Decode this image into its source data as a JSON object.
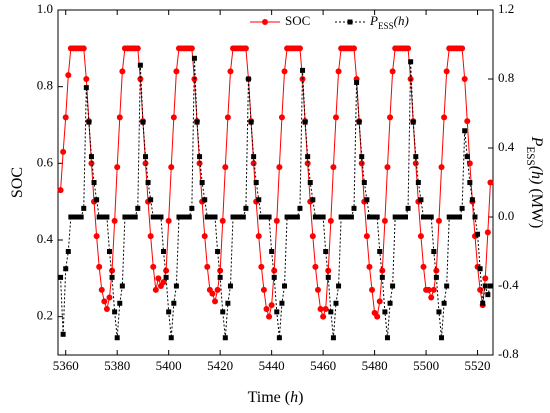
{
  "chart_data": {
    "type": "line",
    "xlabel": [
      {
        "text": "Time ("
      },
      {
        "text": "h",
        "italic": true
      },
      {
        "text": ")"
      }
    ],
    "ylabel": [
      {
        "text": "SOC"
      }
    ],
    "y2label": [
      {
        "text": "P",
        "italic": true
      },
      {
        "text": "ESS",
        "sub": true
      },
      {
        "text": "(h)",
        "italic": true
      },
      {
        "text": " (MW)"
      }
    ],
    "x": [
      5358,
      5359,
      5360,
      5361,
      5362,
      5363,
      5364,
      5365,
      5366,
      5367,
      5368,
      5369,
      5370,
      5371,
      5372,
      5373,
      5374,
      5375,
      5376,
      5377,
      5378,
      5379,
      5380,
      5381,
      5382,
      5383,
      5384,
      5385,
      5386,
      5387,
      5388,
      5389,
      5390,
      5391,
      5392,
      5393,
      5394,
      5395,
      5396,
      5397,
      5398,
      5399,
      5400,
      5401,
      5402,
      5403,
      5404,
      5405,
      5406,
      5407,
      5408,
      5409,
      5410,
      5411,
      5412,
      5413,
      5414,
      5415,
      5416,
      5417,
      5418,
      5419,
      5420,
      5421,
      5422,
      5423,
      5424,
      5425,
      5426,
      5427,
      5428,
      5429,
      5430,
      5431,
      5432,
      5433,
      5434,
      5435,
      5436,
      5437,
      5438,
      5439,
      5440,
      5441,
      5442,
      5443,
      5444,
      5445,
      5446,
      5447,
      5448,
      5449,
      5450,
      5451,
      5452,
      5453,
      5454,
      5455,
      5456,
      5457,
      5458,
      5459,
      5460,
      5461,
      5462,
      5463,
      5464,
      5465,
      5466,
      5467,
      5468,
      5469,
      5470,
      5471,
      5472,
      5473,
      5474,
      5475,
      5476,
      5477,
      5478,
      5479,
      5480,
      5481,
      5482,
      5483,
      5484,
      5485,
      5486,
      5487,
      5488,
      5489,
      5490,
      5491,
      5492,
      5493,
      5494,
      5495,
      5496,
      5497,
      5498,
      5499,
      5500,
      5501,
      5502,
      5503,
      5504,
      5505,
      5506,
      5507,
      5508,
      5509,
      5510,
      5511,
      5512,
      5513,
      5514,
      5515,
      5516,
      5517,
      5518,
      5519,
      5520,
      5521,
      5522,
      5523,
      5524,
      5525
    ],
    "series": [
      {
        "name": [
          {
            "text": "SOC"
          }
        ],
        "color": "#ff0000",
        "dash": false,
        "marker": "circle",
        "axis": "y",
        "values": [
          0.53,
          0.63,
          0.72,
          0.83,
          0.9,
          0.9,
          0.9,
          0.9,
          0.9,
          0.9,
          0.82,
          0.71,
          0.6,
          0.5,
          0.41,
          0.33,
          0.27,
          0.24,
          0.22,
          0.25,
          0.32,
          0.45,
          0.59,
          0.72,
          0.84,
          0.9,
          0.9,
          0.9,
          0.9,
          0.9,
          0.9,
          0.82,
          0.71,
          0.6,
          0.5,
          0.41,
          0.33,
          0.27,
          0.3,
          0.28,
          0.29,
          0.32,
          0.45,
          0.59,
          0.72,
          0.84,
          0.9,
          0.9,
          0.9,
          0.9,
          0.9,
          0.9,
          0.82,
          0.71,
          0.6,
          0.5,
          0.41,
          0.33,
          0.27,
          0.26,
          0.24,
          0.27,
          0.32,
          0.45,
          0.59,
          0.72,
          0.84,
          0.9,
          0.9,
          0.9,
          0.9,
          0.9,
          0.9,
          0.82,
          0.71,
          0.6,
          0.5,
          0.41,
          0.33,
          0.27,
          0.22,
          0.2,
          0.23,
          0.32,
          0.45,
          0.59,
          0.72,
          0.84,
          0.9,
          0.9,
          0.9,
          0.9,
          0.9,
          0.9,
          0.82,
          0.71,
          0.6,
          0.5,
          0.41,
          0.33,
          0.27,
          0.22,
          0.2,
          0.22,
          0.32,
          0.45,
          0.59,
          0.72,
          0.84,
          0.9,
          0.9,
          0.9,
          0.9,
          0.9,
          0.9,
          0.82,
          0.71,
          0.6,
          0.5,
          0.41,
          0.33,
          0.27,
          0.21,
          0.2,
          0.24,
          0.32,
          0.45,
          0.59,
          0.72,
          0.84,
          0.9,
          0.9,
          0.9,
          0.9,
          0.9,
          0.9,
          0.82,
          0.71,
          0.6,
          0.5,
          0.41,
          0.33,
          0.27,
          0.27,
          0.25,
          0.27,
          0.32,
          0.45,
          0.59,
          0.72,
          0.84,
          0.9,
          0.9,
          0.9,
          0.9,
          0.9,
          0.9,
          0.82,
          0.71,
          0.6,
          0.5,
          0.41,
          0.33,
          0.27,
          0.23,
          0.3,
          0.42,
          0.55
        ]
      },
      {
        "name": [
          {
            "text": "P",
            "italic": true
          },
          {
            "text": "ESS",
            "sub": true
          },
          {
            "text": "(h)",
            "italic": true
          }
        ],
        "color": "#000000",
        "dash": true,
        "marker": "square",
        "axis": "y2",
        "values": [
          -0.35,
          -0.68,
          -0.3,
          -0.2,
          0,
          0,
          0,
          0,
          0,
          0.05,
          0.75,
          0.55,
          0.35,
          0.2,
          0.1,
          0,
          0,
          0,
          0,
          -0.2,
          -0.35,
          -0.55,
          -0.7,
          -0.5,
          -0.4,
          0,
          0,
          0,
          0,
          0,
          0.05,
          0.88,
          0.55,
          0.35,
          0.2,
          0.1,
          0,
          0,
          0,
          0,
          -0.2,
          -0.35,
          -0.55,
          -0.7,
          -0.5,
          -0.4,
          0,
          0,
          0,
          0,
          0,
          0.05,
          0.92,
          0.55,
          0.35,
          0.2,
          0.1,
          0,
          0,
          0,
          0,
          -0.2,
          -0.35,
          -0.55,
          -0.7,
          -0.5,
          -0.4,
          0,
          0,
          0,
          0,
          0,
          0.05,
          0.8,
          0.55,
          0.35,
          0.2,
          0.1,
          0,
          0,
          0,
          0,
          -0.2,
          -0.35,
          -0.55,
          -0.7,
          -0.5,
          -0.4,
          0,
          0,
          0,
          0,
          0,
          0.05,
          0.85,
          0.55,
          0.35,
          0.2,
          0.1,
          0,
          0,
          0,
          0,
          -0.2,
          -0.35,
          -0.55,
          -0.7,
          -0.5,
          -0.4,
          0,
          0,
          0,
          0,
          0,
          0.05,
          0.78,
          0.55,
          0.35,
          0.2,
          0.1,
          0,
          0,
          0,
          0,
          -0.2,
          -0.35,
          -0.55,
          -0.7,
          -0.5,
          -0.4,
          0,
          0,
          0,
          0,
          0,
          0.05,
          0.9,
          0.55,
          0.35,
          0.2,
          0.1,
          0,
          0,
          0,
          0,
          -0.2,
          -0.35,
          -0.55,
          -0.7,
          -0.5,
          -0.4,
          0,
          0,
          0,
          0,
          0,
          0.05,
          0.5,
          0.35,
          0.2,
          0.1,
          0,
          -0.1,
          -0.3,
          -0.5,
          -0.4,
          -0.45,
          -0.4
        ]
      }
    ],
    "xlim": [
      5357,
      5526
    ],
    "xticks": [
      5360,
      5380,
      5400,
      5420,
      5440,
      5460,
      5480,
      5500,
      5520
    ],
    "ylim": [
      0.1,
      1.0
    ],
    "yticks": [
      0.2,
      0.4,
      0.6,
      0.8,
      {
        "value": 1,
        "label": "1.0"
      }
    ],
    "y2lim": [
      -0.8,
      1.2
    ],
    "y2ticks": [
      -0.8,
      -0.4,
      {
        "value": 0,
        "label": "0.0"
      },
      0.4,
      0.8,
      1.2
    ],
    "legend": "top",
    "grid": false
  }
}
